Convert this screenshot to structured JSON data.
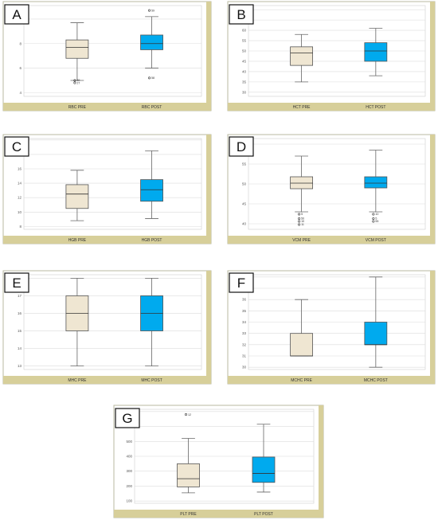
{
  "colors": {
    "pre_box": "#efe6d2",
    "post_box": "#00aaee",
    "strip": "#d7cf9a"
  },
  "chart_data": [
    {
      "type": "box",
      "letter": "A",
      "categories": [
        "RBC PRE",
        "RBC POST"
      ],
      "ylim": [
        3.7,
        11.1
      ],
      "yticks": [
        4,
        6,
        8,
        10
      ],
      "boxes": [
        {
          "name": "RBC PRE",
          "min": 5.0,
          "q1": 6.8,
          "median": 7.7,
          "q3": 8.3,
          "max": 9.7,
          "outliers": [
            {
              "value": 5.0,
              "label": "30"
            },
            {
              "value": 4.8,
              "label": "27"
            }
          ]
        },
        {
          "name": "RBC POST",
          "min": 6.0,
          "q1": 7.5,
          "median": 8.0,
          "q3": 8.7,
          "max": 10.2,
          "outliers": [
            {
              "value": 10.7,
              "label": "59"
            },
            {
              "value": 5.2,
              "label": "58"
            }
          ]
        }
      ]
    },
    {
      "type": "box",
      "letter": "B",
      "categories": [
        "HCT PRE",
        "HCT POST"
      ],
      "ylim": [
        28,
        72
      ],
      "yticks": [
        30,
        35,
        40,
        45,
        50,
        55,
        60,
        65,
        70
      ],
      "boxes": [
        {
          "name": "HCT PRE",
          "min": 35,
          "q1": 43,
          "median": 49,
          "q3": 52,
          "max": 58,
          "outliers": []
        },
        {
          "name": "HCT POST",
          "min": 38,
          "q1": 45,
          "median": 50,
          "q3": 54,
          "max": 61,
          "outliers": []
        }
      ]
    },
    {
      "type": "box",
      "letter": "C",
      "categories": [
        "HGB PRE",
        "HGB POST"
      ],
      "ylim": [
        7.6,
        20.2
      ],
      "yticks": [
        8,
        10,
        12,
        14,
        16,
        18,
        20
      ],
      "boxes": [
        {
          "name": "HGB PRE",
          "min": 8.8,
          "q1": 10.5,
          "median": 12.5,
          "q3": 13.8,
          "max": 15.8,
          "outliers": []
        },
        {
          "name": "HGB POST",
          "min": 9.1,
          "q1": 11.5,
          "median": 13.1,
          "q3": 14.5,
          "max": 18.5,
          "outliers": []
        }
      ]
    },
    {
      "type": "box",
      "letter": "D",
      "categories": [
        "VCM PRE",
        "VCM POST"
      ],
      "ylim": [
        38.6,
        61.4
      ],
      "yticks": [
        40,
        45,
        50,
        55,
        60
      ],
      "boxes": [
        {
          "name": "VCM PRE",
          "min": 43,
          "q1": 48.8,
          "median": 50.2,
          "q3": 51.8,
          "max": 57,
          "outliers": [
            {
              "value": 42.4,
              "label": "5"
            },
            {
              "value": 41.3,
              "label": "50"
            },
            {
              "value": 40.6,
              "label": "10"
            },
            {
              "value": 39.8,
              "label": "11"
            }
          ]
        },
        {
          "name": "VCM POST",
          "min": 43,
          "q1": 49,
          "median": 50.2,
          "q3": 51.8,
          "max": 58.5,
          "outliers": [
            {
              "value": 42.4,
              "label": "10"
            },
            {
              "value": 41.3,
              "label": "5"
            },
            {
              "value": 40.6,
              "label": "55"
            }
          ]
        }
      ]
    },
    {
      "type": "box",
      "letter": "E",
      "categories": [
        "MHC PRE",
        "MHC POST"
      ],
      "ylim": [
        12.8,
        18.2
      ],
      "yticks": [
        13,
        14,
        15,
        16,
        17,
        18
      ],
      "boxes": [
        {
          "name": "MHC PRE",
          "min": 13,
          "q1": 15,
          "median": 16,
          "q3": 17,
          "max": 18,
          "outliers": []
        },
        {
          "name": "MHC POST",
          "min": 13,
          "q1": 15,
          "median": 16,
          "q3": 17,
          "max": 18,
          "outliers": []
        }
      ]
    },
    {
      "type": "box",
      "letter": "F",
      "categories": [
        "MCHC PRE",
        "MCHC POST"
      ],
      "ylim": [
        29.8,
        38.2
      ],
      "yticks": [
        30,
        31,
        32,
        33,
        34,
        35,
        36,
        37,
        38
      ],
      "boxes": [
        {
          "name": "MCHC PRE",
          "min": 31,
          "q1": 31,
          "median": 31,
          "q3": 33,
          "max": 36,
          "outliers": []
        },
        {
          "name": "MCHC POST",
          "min": 30,
          "q1": 32,
          "median": 32,
          "q3": 34,
          "max": 38,
          "outliers": []
        }
      ]
    },
    {
      "type": "box",
      "letter": "G",
      "categories": [
        "PLT PRE",
        "PLT POST"
      ],
      "ylim": [
        85,
        715
      ],
      "yticks": [
        100,
        200,
        300,
        400,
        500,
        600,
        700
      ],
      "boxes": [
        {
          "name": "PLT PRE",
          "min": 155,
          "q1": 195,
          "median": 250,
          "q3": 350,
          "max": 520,
          "outliers": [
            {
              "value": 680,
              "label": "12"
            }
          ]
        },
        {
          "name": "PLT POST",
          "min": 160,
          "q1": 225,
          "median": 285,
          "q3": 395,
          "max": 615,
          "outliers": []
        }
      ]
    }
  ]
}
